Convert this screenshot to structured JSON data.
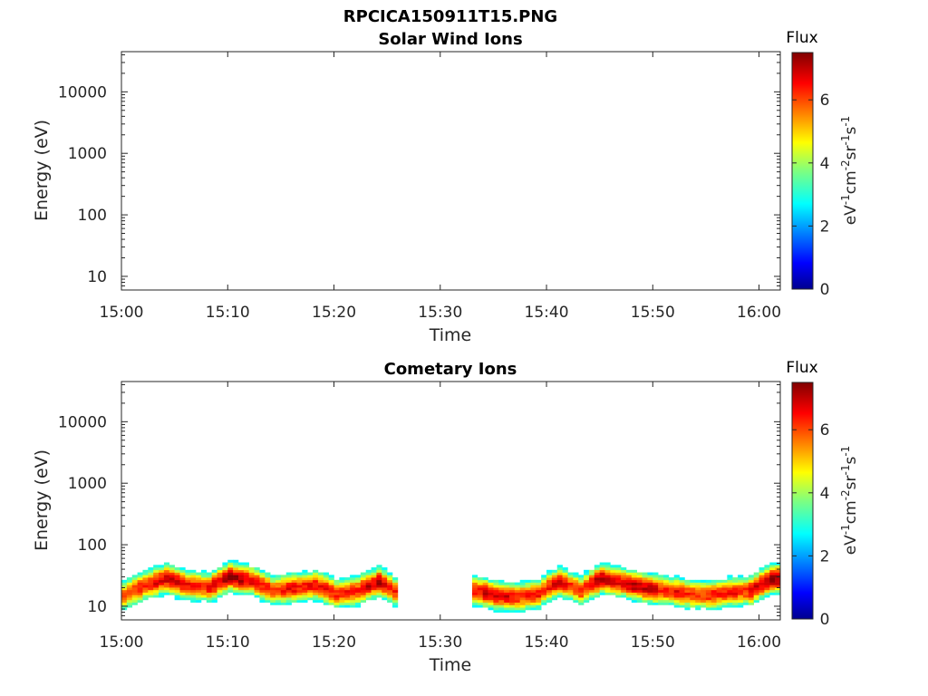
{
  "chart_data": [
    {
      "type": "heatmap",
      "title": "RPCICA150911T15.PNG",
      "subtitle": "Solar Wind Ions",
      "xlabel": "Time",
      "ylabel": "Energy (eV)",
      "x_ticks": [
        "15:00",
        "15:10",
        "15:20",
        "15:30",
        "15:40",
        "15:50",
        "16:00"
      ],
      "xlim": [
        "15:00",
        "16:02"
      ],
      "y_scale": "log",
      "y_ticks": [
        "10",
        "100",
        "1000",
        "10000"
      ],
      "ylim": [
        6,
        45000
      ],
      "colorbar": {
        "label": "Flux",
        "unit": "eV-1cm-2sr-1s-1",
        "ticks": [
          "0",
          "2",
          "4",
          "6"
        ],
        "range": [
          0,
          7.5
        ],
        "colormap": "jet"
      },
      "data": []
    },
    {
      "type": "heatmap",
      "title": "Cometary Ions",
      "xlabel": "Time",
      "ylabel": "Energy (eV)",
      "x_ticks": [
        "15:00",
        "15:10",
        "15:20",
        "15:30",
        "15:40",
        "15:50",
        "16:00"
      ],
      "xlim": [
        "15:00",
        "16:02"
      ],
      "y_scale": "log",
      "y_ticks": [
        "10",
        "100",
        "1000",
        "10000"
      ],
      "ylim": [
        6,
        45000
      ],
      "colorbar": {
        "label": "Flux",
        "unit": "eV-1cm-2sr-1s-1",
        "ticks": [
          "0",
          "2",
          "4",
          "6"
        ],
        "range": [
          0,
          7.5
        ],
        "colormap": "jet"
      },
      "data_gaps": [
        [
          "15:26",
          "15:33"
        ]
      ],
      "time_profile": {
        "minutes": [
          0,
          2,
          4,
          6,
          8,
          10,
          12,
          14,
          16,
          18,
          20,
          22,
          24,
          26,
          33,
          35,
          37,
          39,
          41,
          43,
          45,
          47,
          49,
          51,
          53,
          55,
          57,
          59,
          61
        ],
        "peak_energy_eV": [
          15,
          22,
          28,
          22,
          20,
          30,
          26,
          18,
          20,
          22,
          16,
          18,
          25,
          15,
          18,
          15,
          14,
          16,
          25,
          18,
          28,
          24,
          20,
          18,
          16,
          15,
          17,
          18,
          28
        ],
        "peak_flux": [
          6.2,
          6.5,
          7.0,
          6.4,
          6.5,
          7.2,
          6.8,
          6.2,
          6.4,
          6.6,
          6.3,
          6.5,
          7.0,
          6.0,
          6.6,
          6.8,
          6.3,
          6.4,
          6.7,
          6.2,
          7.2,
          6.8,
          7.1,
          6.5,
          6.2,
          6.4,
          6.3,
          6.6,
          7.2
        ]
      }
    }
  ]
}
